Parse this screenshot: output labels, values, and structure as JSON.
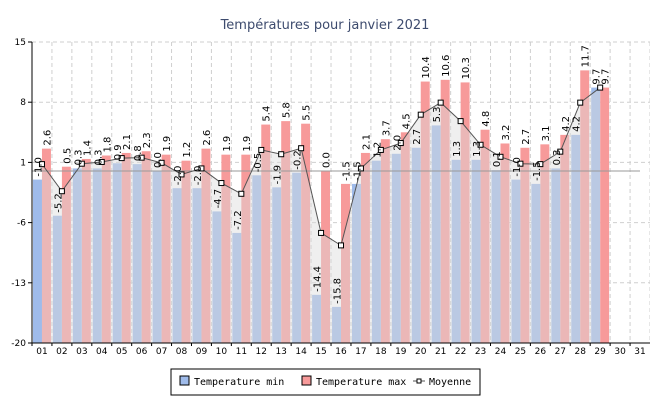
{
  "chart_data": {
    "type": "bar",
    "title": "Températures pour janvier 2021",
    "categories": [
      "01",
      "02",
      "03",
      "04",
      "05",
      "06",
      "07",
      "08",
      "09",
      "10",
      "11",
      "12",
      "13",
      "14",
      "15",
      "16",
      "17",
      "18",
      "19",
      "20",
      "21",
      "22",
      "23",
      "24",
      "25",
      "26",
      "27",
      "28",
      "29",
      "30",
      "31"
    ],
    "ylim": [
      -20,
      15
    ],
    "yticks": [
      15,
      8,
      1,
      -6,
      -13,
      -20
    ],
    "grid": true,
    "legend": "bottom",
    "series": [
      {
        "name": "Temperature min",
        "type": "bar",
        "color": "#9fbbea",
        "values": [
          -1.0,
          -5.2,
          0.3,
          0.3,
          0.9,
          0.8,
          0.0,
          -2.0,
          -2.0,
          -4.7,
          -7.2,
          -0.5,
          -1.9,
          -0.2,
          -14.4,
          -15.8,
          -1.5,
          1.2,
          2.0,
          2.7,
          5.3,
          1.3,
          1.3,
          0.1,
          -1.0,
          -1.5,
          0.3,
          4.2,
          9.7,
          null,
          null
        ]
      },
      {
        "name": "Temperature max",
        "type": "bar",
        "color": "#f79a9a",
        "values": [
          2.6,
          0.5,
          1.4,
          1.8,
          2.1,
          2.3,
          1.9,
          1.2,
          2.6,
          1.9,
          1.9,
          5.4,
          5.8,
          5.5,
          0.0,
          -1.5,
          2.1,
          3.7,
          4.5,
          10.4,
          10.6,
          10.3,
          4.8,
          3.2,
          2.7,
          3.1,
          4.2,
          11.7,
          9.7,
          null,
          null
        ]
      },
      {
        "name": "Moyenne",
        "type": "line",
        "color": "#555555"
      }
    ]
  }
}
